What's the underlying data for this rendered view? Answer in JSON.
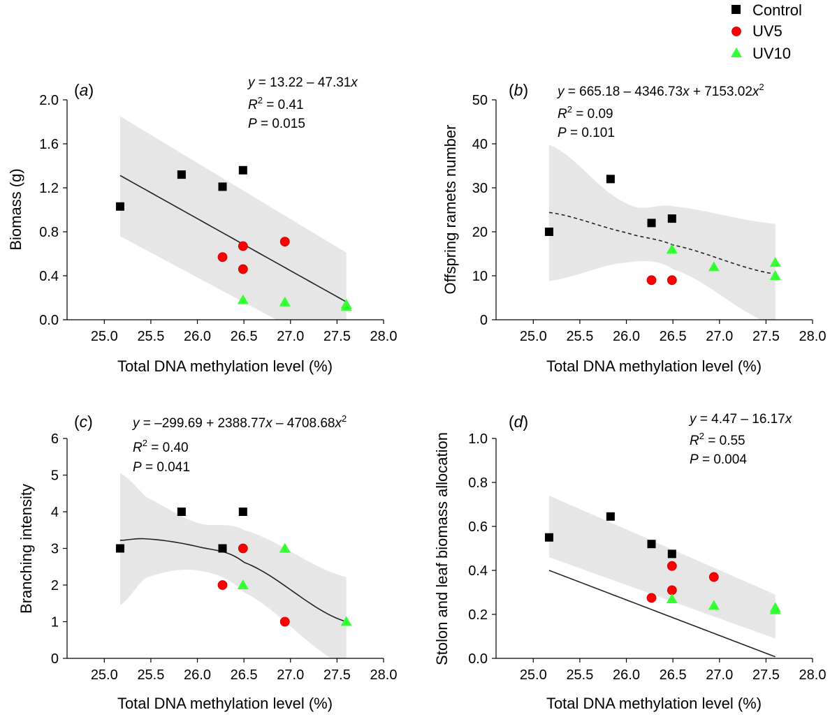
{
  "legend": [
    {
      "name": "Control",
      "marker": "square",
      "color": "#000000"
    },
    {
      "name": "UV5",
      "marker": "circle",
      "color": "#ff0000"
    },
    {
      "name": "UV10",
      "marker": "triangle",
      "color": "#33ff33"
    }
  ],
  "colors": {
    "ci_band": "#e6e6e6",
    "fit_line": "#222222"
  },
  "chart_data": [
    {
      "type": "scatter",
      "panel_label": "a",
      "xlabel": "Total DNA methylation level (%)",
      "ylabel": "Biomass (g)",
      "xlim": [
        24.6,
        28.0
      ],
      "ylim": [
        0.0,
        2.0
      ],
      "x_ticks": [
        "25.0",
        "25.5",
        "26.0",
        "26.5",
        "27.0",
        "27.5",
        "28.0"
      ],
      "y_ticks": [
        "0.0",
        "0.4",
        "0.8",
        "1.2",
        "1.6",
        "2.0"
      ],
      "equation": {
        "lhs": "y",
        "rhs": " = 13.22 – 47.31",
        "var": "x",
        "sq": false
      },
      "r2": " = 0.41",
      "p": " = 0.015",
      "fit": {
        "style": "solid",
        "x_range": [
          25.17,
          27.6
        ],
        "coef": [
          13.22,
          -47.31
        ],
        "ci_upper": [
          1.85,
          0.61
        ],
        "ci_lower": [
          0.76,
          -0.34
        ]
      },
      "series": [
        {
          "name": "Control",
          "points": [
            [
              25.17,
              1.03
            ],
            [
              25.83,
              1.32
            ],
            [
              26.27,
              1.21
            ],
            [
              26.49,
              1.36
            ]
          ]
        },
        {
          "name": "UV5",
          "points": [
            [
              26.27,
              0.57
            ],
            [
              26.49,
              0.67
            ],
            [
              26.49,
              0.46
            ],
            [
              26.94,
              0.71
            ]
          ]
        },
        {
          "name": "UV10",
          "points": [
            [
              26.49,
              0.18
            ],
            [
              26.94,
              0.16
            ],
            [
              27.6,
              0.14
            ],
            [
              27.6,
              0.12
            ]
          ]
        }
      ]
    },
    {
      "type": "scatter",
      "panel_label": "b",
      "xlabel": "Total DNA methylation level (%)",
      "ylabel": "Offspring ramets number",
      "xlim": [
        24.6,
        28.0
      ],
      "ylim": [
        0,
        50
      ],
      "x_ticks": [
        "25.0",
        "25.5",
        "26.0",
        "26.5",
        "27.0",
        "27.5",
        "28.0"
      ],
      "y_ticks": [
        "0",
        "10",
        "20",
        "30",
        "40",
        "50"
      ],
      "equation": {
        "lhs": "y",
        "rhs": " = 665.18 – 4346.73",
        "var": "x",
        "rhs2": " + 7153.02",
        "var2": "x",
        "sq": true
      },
      "r2": " = 0.09",
      "p": " = 0.101",
      "fit": {
        "style": "dashed",
        "x_range": [
          25.17,
          27.6
        ],
        "x_knots": [
          25.17,
          26.0,
          26.5,
          27.6
        ],
        "y_knots": [
          24.4,
          19.8,
          17.0,
          10.4
        ],
        "ci_upper": [
          39.8,
          26.5,
          25.8,
          21.8
        ],
        "ci_lower": [
          8.8,
          13.0,
          11.5,
          -1.2
        ]
      },
      "series": [
        {
          "name": "Control",
          "points": [
            [
              25.17,
              20
            ],
            [
              25.83,
              32
            ],
            [
              26.27,
              22
            ],
            [
              26.49,
              23
            ]
          ]
        },
        {
          "name": "UV5",
          "points": [
            [
              26.27,
              9
            ],
            [
              26.49,
              9
            ]
          ]
        },
        {
          "name": "UV10",
          "points": [
            [
              26.49,
              16
            ],
            [
              26.94,
              12
            ],
            [
              27.6,
              13
            ],
            [
              27.6,
              10
            ]
          ]
        }
      ]
    },
    {
      "type": "scatter",
      "panel_label": "c",
      "xlabel": "Total DNA methylation level (%)",
      "ylabel": "Branching intensity",
      "xlim": [
        24.6,
        28.0
      ],
      "ylim": [
        0,
        6
      ],
      "x_ticks": [
        "25.0",
        "25.5",
        "26.0",
        "26.5",
        "27.0",
        "27.5",
        "28.0"
      ],
      "y_ticks": [
        "0",
        "1",
        "2",
        "3",
        "4",
        "5",
        "6"
      ],
      "equation": {
        "lhs": "y",
        "rhs": " = –299.69 + 2388.77",
        "var": "x",
        "rhs2": " – 4708.68",
        "var2": "x",
        "sq": true
      },
      "r2": " = 0.40",
      "p": " = 0.041",
      "fit": {
        "style": "solid",
        "x_range": [
          25.17,
          27.6
        ],
        "x_knots": [
          25.17,
          25.45,
          26.0,
          26.5,
          27.6
        ],
        "y_knots": [
          3.22,
          3.26,
          3.05,
          2.62,
          1.0
        ],
        "ci_upper": [
          5.05,
          4.4,
          3.7,
          3.5,
          2.22
        ],
        "ci_lower": [
          1.45,
          2.2,
          2.4,
          1.8,
          -0.2
        ]
      },
      "series": [
        {
          "name": "Control",
          "points": [
            [
              25.17,
              3
            ],
            [
              25.83,
              4
            ],
            [
              26.27,
              3
            ],
            [
              26.49,
              4
            ]
          ]
        },
        {
          "name": "UV5",
          "points": [
            [
              26.27,
              2
            ],
            [
              26.49,
              3
            ],
            [
              26.94,
              1
            ]
          ]
        },
        {
          "name": "UV10",
          "points": [
            [
              26.49,
              2
            ],
            [
              26.94,
              3
            ],
            [
              27.6,
              1
            ]
          ]
        }
      ]
    },
    {
      "type": "scatter",
      "panel_label": "d",
      "xlabel": "Total DNA methylation level (%)",
      "ylabel": "Stolon and leaf biomass allocation",
      "xlim": [
        24.6,
        28.0
      ],
      "ylim": [
        0.0,
        1.0
      ],
      "x_ticks": [
        "25.0",
        "25.5",
        "26.0",
        "26.5",
        "27.0",
        "27.5",
        "28.0"
      ],
      "y_ticks": [
        "0.0",
        "0.2",
        "0.4",
        "0.6",
        "0.8",
        "1.0"
      ],
      "equation": {
        "lhs": "y",
        "rhs": " = 4.47 – 16.17",
        "var": "x",
        "sq": false
      },
      "r2": " = 0.55",
      "p": " = 0.004",
      "fit": {
        "style": "solid",
        "x_range": [
          25.17,
          27.6
        ],
        "coef": [
          4.47,
          -16.17
        ],
        "ci_upper": [
          0.74,
          0.29
        ],
        "ci_lower": [
          0.46,
          0.09
        ]
      },
      "series": [
        {
          "name": "Control",
          "points": [
            [
              25.17,
              0.55
            ],
            [
              25.83,
              0.645
            ],
            [
              26.27,
              0.52
            ],
            [
              26.49,
              0.475
            ]
          ]
        },
        {
          "name": "UV5",
          "points": [
            [
              26.27,
              0.275
            ],
            [
              26.49,
              0.42
            ],
            [
              26.49,
              0.31
            ],
            [
              26.94,
              0.37
            ]
          ]
        },
        {
          "name": "UV10",
          "points": [
            [
              26.49,
              0.27
            ],
            [
              26.94,
              0.24
            ],
            [
              27.6,
              0.23
            ],
            [
              27.6,
              0.22
            ]
          ]
        }
      ]
    }
  ]
}
